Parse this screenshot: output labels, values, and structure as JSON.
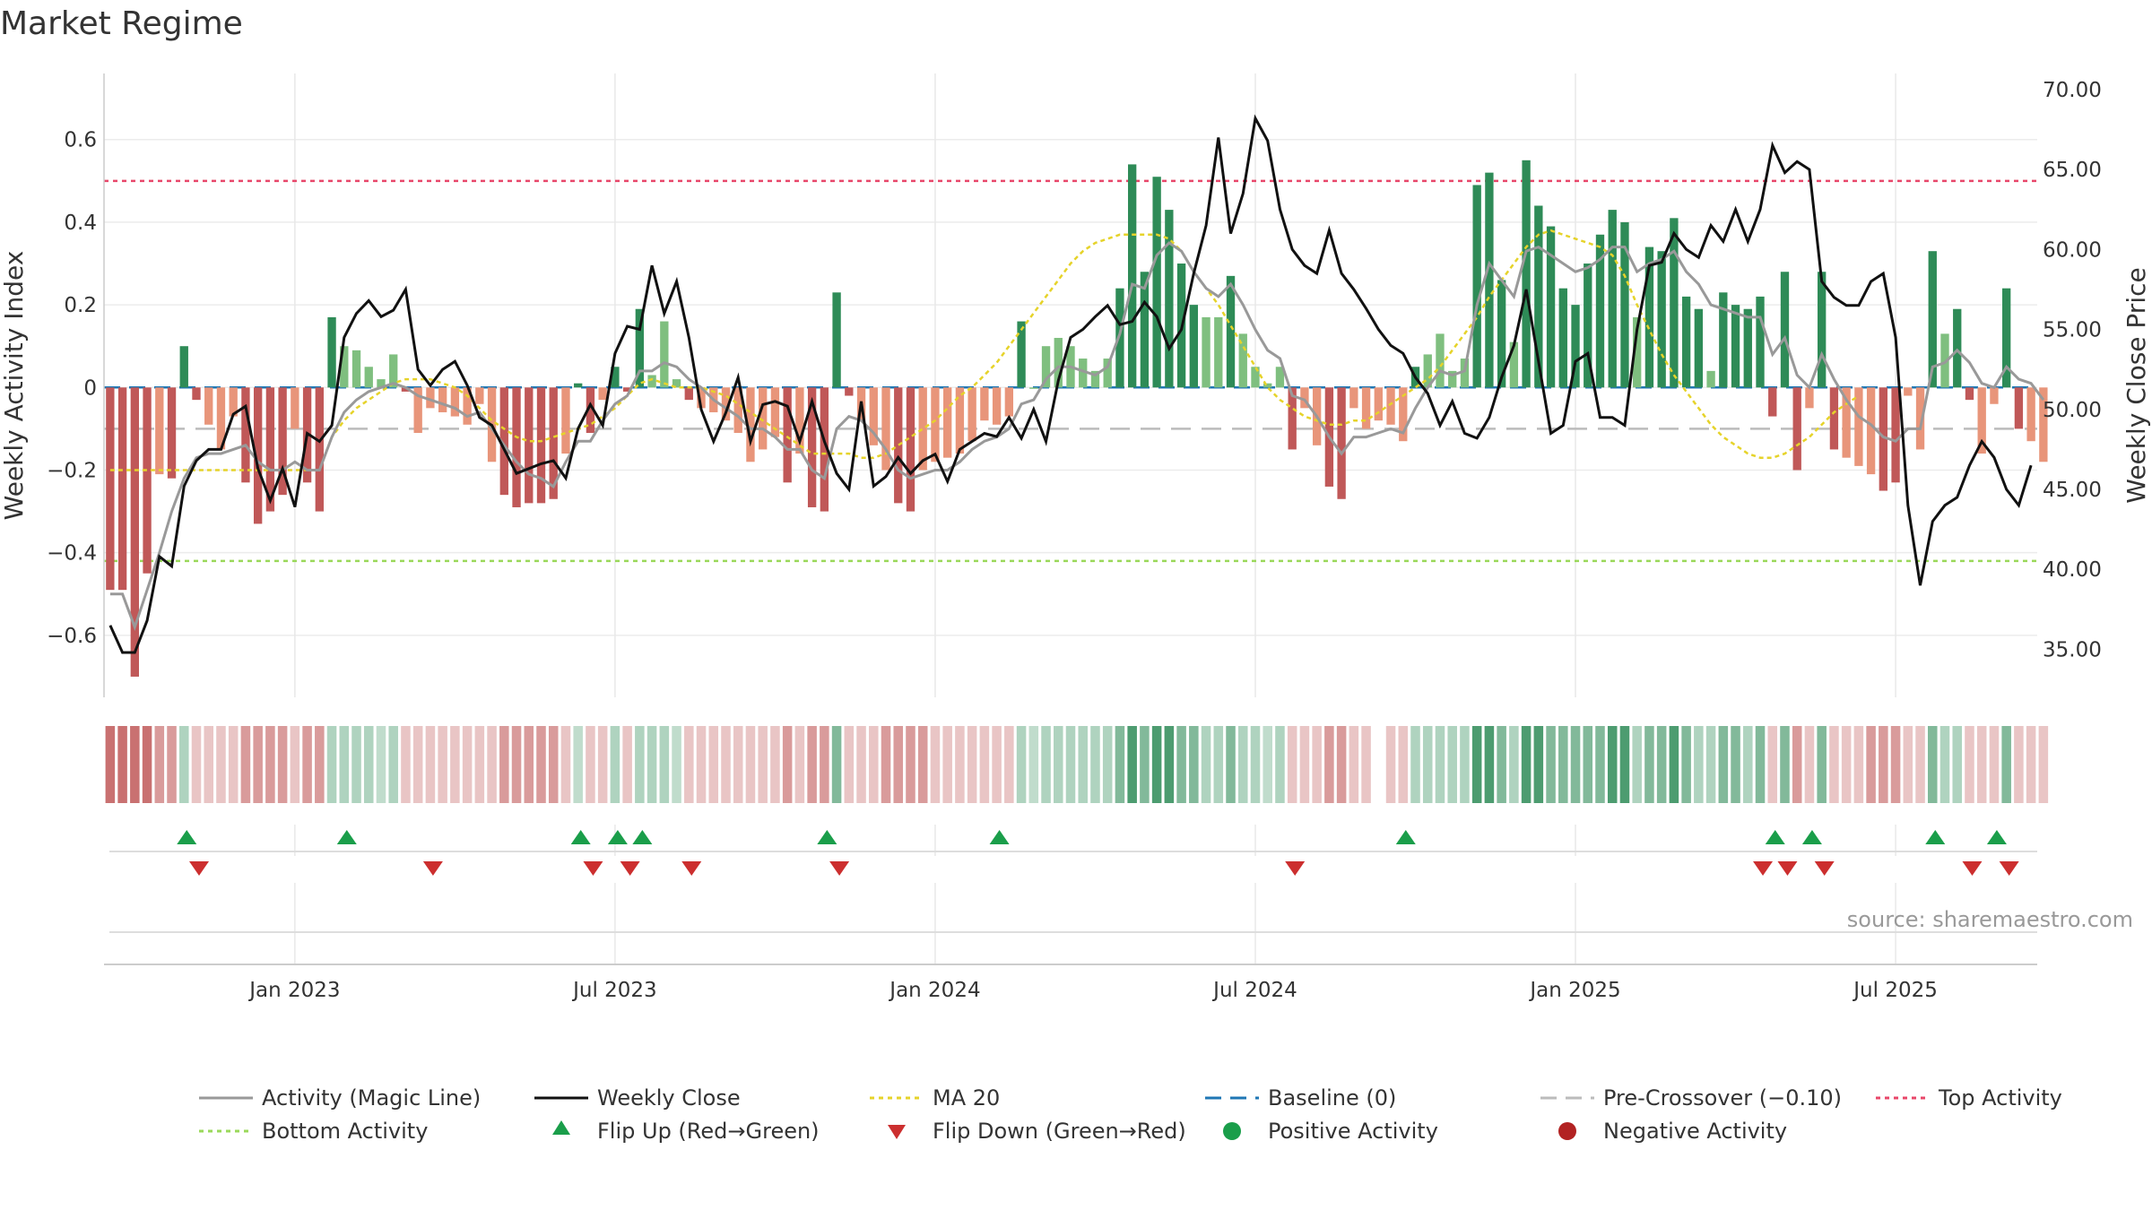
{
  "page": {
    "title": "Market Regime",
    "source": "source: sharemaestro.com"
  },
  "colors": {
    "strong_green": "#2e8b57",
    "light_green": "#7fbf7f",
    "strong_red": "#c05858",
    "light_red": "#e8957a",
    "activity_line": "#999999",
    "close_line": "#111111",
    "ma_line": "#e6d32a",
    "baseline": "#1f77b4",
    "pre_crossover": "#bbbbbb",
    "top_line": "#e8476a",
    "bottom_line": "#9ad85a",
    "flip_up": "#1a9e4a",
    "flip_down": "#cc2f2f",
    "positive_dot": "#1a9e4a",
    "negative_dot": "#b22222"
  },
  "chart_data": {
    "type": "bar",
    "title": "Market Regime",
    "xlabel": "",
    "ylabel": "Weekly Activity Index",
    "y2label": "Weekly Close Price",
    "ylim": [
      -0.75,
      0.76
    ],
    "y2lim": [
      32.0,
      71.0
    ],
    "yticks": [
      "0.6",
      "0.4",
      "0.2",
      "0",
      "−0.2",
      "−0.4",
      "−0.6"
    ],
    "y2ticks": [
      "70.00",
      "65.00",
      "60.00",
      "55.00",
      "50.00",
      "45.00",
      "40.00",
      "35.00"
    ],
    "xticks": [
      "Jan 2023",
      "Jul 2023",
      "Jan 2024",
      "Jul 2024",
      "Jan 2025",
      "Jul 2025"
    ],
    "xtick_weeks": [
      15,
      41,
      67,
      93,
      119,
      145
    ],
    "reference_lines": {
      "top_activity": 0.5,
      "bottom_activity": -0.42,
      "baseline": 0,
      "pre_crossover": -0.1
    },
    "weeks": 157,
    "activity": [
      -0.49,
      -0.49,
      -0.7,
      -0.45,
      -0.21,
      -0.22,
      0.1,
      -0.03,
      -0.09,
      -0.15,
      -0.07,
      -0.23,
      -0.33,
      -0.3,
      -0.26,
      -0.1,
      -0.23,
      -0.3,
      0.17,
      0.1,
      0.09,
      0.05,
      0.02,
      0.08,
      -0.01,
      -0.11,
      -0.05,
      -0.06,
      -0.07,
      -0.09,
      -0.04,
      -0.18,
      -0.26,
      -0.29,
      -0.28,
      -0.28,
      -0.27,
      -0.16,
      0.01,
      -0.11,
      -0.03,
      0.05,
      -0.01,
      0.19,
      0.03,
      0.16,
      0.02,
      -0.03,
      -0.05,
      -0.06,
      -0.08,
      -0.11,
      -0.18,
      -0.15,
      -0.12,
      -0.23,
      -0.16,
      -0.29,
      -0.3,
      0.23,
      -0.02,
      -0.08,
      -0.14,
      -0.2,
      -0.28,
      -0.3,
      -0.2,
      -0.18,
      -0.17,
      -0.16,
      -0.13,
      -0.08,
      -0.09,
      -0.07,
      0.16,
      0.0,
      0.1,
      0.12,
      0.1,
      0.07,
      0.04,
      0.07,
      0.24,
      0.54,
      0.28,
      0.51,
      0.43,
      0.3,
      0.2,
      0.17,
      0.17,
      0.27,
      0.13,
      0.05,
      0.01,
      0.05,
      -0.15,
      -0.05,
      -0.14,
      -0.24,
      -0.27,
      -0.05,
      -0.1,
      -0.08,
      -0.09,
      -0.13,
      0.05,
      0.08,
      0.13,
      0.04,
      0.07,
      0.49,
      0.52,
      0.26,
      0.11,
      0.55,
      0.44,
      0.39,
      0.24,
      0.2,
      0.3,
      0.37,
      0.43,
      0.4,
      0.17,
      0.34,
      0.33,
      0.41,
      0.22,
      0.19,
      0.04,
      0.23,
      0.2,
      0.19,
      0.22,
      -0.07,
      0.28,
      -0.2,
      -0.05,
      0.28,
      -0.15,
      -0.17,
      -0.19,
      -0.21,
      -0.25,
      -0.23,
      -0.02,
      -0.15,
      0.33,
      0.13,
      0.19,
      -0.03,
      -0.16,
      -0.04,
      0.24,
      -0.1,
      -0.13,
      -0.18
    ],
    "activity_line": [
      -0.5,
      -0.5,
      -0.58,
      -0.49,
      -0.4,
      -0.3,
      -0.22,
      -0.17,
      -0.16,
      -0.16,
      -0.15,
      -0.14,
      -0.18,
      -0.2,
      -0.2,
      -0.18,
      -0.2,
      -0.2,
      -0.12,
      -0.06,
      -0.03,
      -0.01,
      0.0,
      0.01,
      0.0,
      -0.02,
      -0.03,
      -0.04,
      -0.05,
      -0.07,
      -0.06,
      -0.1,
      -0.14,
      -0.18,
      -0.21,
      -0.22,
      -0.24,
      -0.18,
      -0.13,
      -0.13,
      -0.08,
      -0.04,
      -0.02,
      0.04,
      0.04,
      0.06,
      0.05,
      0.02,
      0.0,
      -0.03,
      -0.05,
      -0.07,
      -0.1,
      -0.1,
      -0.12,
      -0.15,
      -0.15,
      -0.2,
      -0.22,
      -0.1,
      -0.07,
      -0.08,
      -0.11,
      -0.15,
      -0.2,
      -0.22,
      -0.21,
      -0.2,
      -0.2,
      -0.18,
      -0.15,
      -0.13,
      -0.12,
      -0.1,
      -0.04,
      -0.03,
      0.02,
      0.05,
      0.05,
      0.04,
      0.03,
      0.05,
      0.13,
      0.25,
      0.24,
      0.32,
      0.35,
      0.33,
      0.28,
      0.24,
      0.22,
      0.25,
      0.2,
      0.14,
      0.09,
      0.07,
      -0.02,
      -0.03,
      -0.07,
      -0.12,
      -0.16,
      -0.12,
      -0.12,
      -0.11,
      -0.1,
      -0.11,
      -0.05,
      0.0,
      0.04,
      0.03,
      0.04,
      0.2,
      0.3,
      0.26,
      0.22,
      0.33,
      0.34,
      0.32,
      0.3,
      0.28,
      0.29,
      0.31,
      0.34,
      0.34,
      0.28,
      0.3,
      0.31,
      0.33,
      0.28,
      0.25,
      0.2,
      0.19,
      0.18,
      0.17,
      0.17,
      0.08,
      0.12,
      0.03,
      0.0,
      0.08,
      0.02,
      -0.03,
      -0.07,
      -0.09,
      -0.12,
      -0.13,
      -0.1,
      -0.1,
      0.05,
      0.06,
      0.09,
      0.06,
      0.01,
      0.0,
      0.05,
      0.02,
      0.01,
      -0.03
    ],
    "weekly_close": [
      36.5,
      34.8,
      34.8,
      36.8,
      40.8,
      40.2,
      45.2,
      46.8,
      47.5,
      47.5,
      49.7,
      50.2,
      46.3,
      44.3,
      46.3,
      43.9,
      48.5,
      48.0,
      49.0,
      54.5,
      56.0,
      56.8,
      55.8,
      56.2,
      57.5,
      52.5,
      51.5,
      52.5,
      53.0,
      51.5,
      49.5,
      49.0,
      47.5,
      46.0,
      46.3,
      46.6,
      46.8,
      45.7,
      48.8,
      50.3,
      49.0,
      53.5,
      55.2,
      55.0,
      59.0,
      56.0,
      58.0,
      54.5,
      50.0,
      48.0,
      49.8,
      52.0,
      48.0,
      50.3,
      50.5,
      50.2,
      48.0,
      50.5,
      48.0,
      46.0,
      45.0,
      50.5,
      45.2,
      45.8,
      47.0,
      46.0,
      46.8,
      47.2,
      45.5,
      47.5,
      48.0,
      48.5,
      48.3,
      49.5,
      48.2,
      50.0,
      48.0,
      51.8,
      54.5,
      55.0,
      55.8,
      56.5,
      55.3,
      55.5,
      56.7,
      55.8,
      53.8,
      55.0,
      58.5,
      61.5,
      67.0,
      61.0,
      63.5,
      68.2,
      66.8,
      62.5,
      60.0,
      59.0,
      58.5,
      61.2,
      58.5,
      57.5,
      56.3,
      55.0,
      54.0,
      53.5,
      52.0,
      51.0,
      49.0,
      50.5,
      48.5,
      48.2,
      49.5,
      52.0,
      54.0,
      57.5,
      53.0,
      48.5,
      49.0,
      53.0,
      53.5,
      49.5,
      49.5,
      49.0,
      55.0,
      59.0,
      59.2,
      61.0,
      60.0,
      59.5,
      61.5,
      60.5,
      62.5,
      60.5,
      62.5,
      66.5,
      64.8,
      65.5,
      65.0,
      58.0,
      57.0,
      56.5,
      56.5,
      58.0,
      58.5,
      54.5,
      44.0,
      39.0,
      43.0,
      44.0,
      44.5,
      46.5,
      48.0,
      47.0,
      45.0,
      44.0,
      46.5
    ],
    "ma20": [
      -0.2,
      -0.2,
      -0.2,
      -0.2,
      -0.2,
      -0.2,
      -0.2,
      -0.2,
      -0.2,
      -0.2,
      -0.2,
      -0.2,
      -0.2,
      -0.2,
      -0.2,
      -0.2,
      -0.2,
      -0.2,
      -0.12,
      -0.08,
      -0.05,
      -0.03,
      -0.01,
      0.01,
      0.02,
      0.02,
      0.02,
      0.01,
      0.0,
      -0.02,
      -0.05,
      -0.08,
      -0.1,
      -0.12,
      -0.13,
      -0.13,
      -0.12,
      -0.11,
      -0.1,
      -0.09,
      -0.07,
      -0.05,
      -0.02,
      0.01,
      0.02,
      0.01,
      0.0,
      0.0,
      0.0,
      -0.01,
      -0.02,
      -0.04,
      -0.06,
      -0.08,
      -0.1,
      -0.12,
      -0.14,
      -0.16,
      -0.16,
      -0.16,
      -0.16,
      -0.17,
      -0.17,
      -0.16,
      -0.14,
      -0.12,
      -0.1,
      -0.08,
      -0.05,
      -0.02,
      0.0,
      0.03,
      0.06,
      0.1,
      0.14,
      0.18,
      0.22,
      0.26,
      0.3,
      0.33,
      0.35,
      0.36,
      0.37,
      0.37,
      0.37,
      0.37,
      0.36,
      0.33,
      0.28,
      0.24,
      0.2,
      0.15,
      0.1,
      0.05,
      0.0,
      -0.03,
      -0.05,
      -0.07,
      -0.08,
      -0.09,
      -0.09,
      -0.08,
      -0.08,
      -0.06,
      -0.04,
      -0.02,
      0.0,
      0.02,
      0.05,
      0.09,
      0.13,
      0.17,
      0.22,
      0.26,
      0.3,
      0.34,
      0.37,
      0.38,
      0.37,
      0.36,
      0.35,
      0.34,
      0.32,
      0.27,
      0.2,
      0.14,
      0.08,
      0.03,
      -0.01,
      -0.05,
      -0.09,
      -0.12,
      -0.14,
      -0.16,
      -0.17,
      -0.17,
      -0.16,
      -0.14,
      -0.12,
      -0.09,
      -0.06,
      -0.04,
      -0.02
    ],
    "ma20_start": 0,
    "flip_up_weeks": [
      6,
      19,
      38,
      41,
      43,
      58,
      72,
      105,
      135,
      138,
      148,
      153
    ],
    "flip_down_weeks": [
      7,
      26,
      39,
      42,
      47,
      59,
      96,
      134,
      136,
      139,
      151,
      154
    ],
    "legend": {
      "activity_line": "Activity (Magic Line)",
      "weekly_close": "Weekly Close",
      "ma20": "MA 20",
      "baseline": "Baseline (0)",
      "pre_crossover": "Pre-Crossover (−0.10)",
      "top_activity": "Top Activity",
      "bottom_activity": "Bottom Activity",
      "flip_up": "Flip Up (Red→Green)",
      "flip_down": "Flip Down (Green→Red)",
      "positive_activity": "Positive Activity",
      "negative_activity": "Negative Activity"
    },
    "legend_placement": "bottom"
  }
}
